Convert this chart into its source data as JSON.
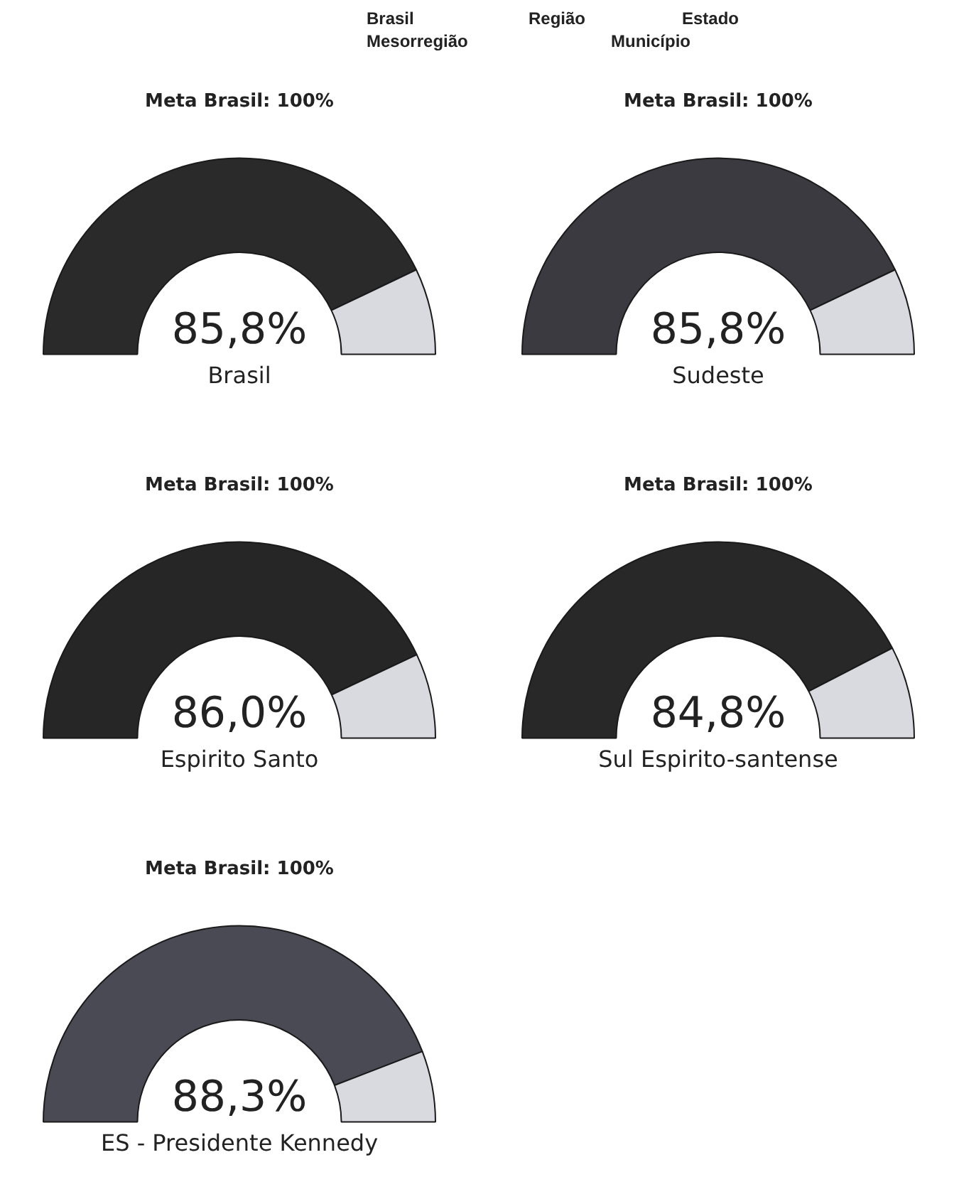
{
  "chart_data": [
    {
      "type": "other",
      "annotations": [
        "Brasil",
        "Região",
        "Estado",
        "Mesorregião",
        "Município"
      ]
    },
    {
      "type": "donut",
      "title": "Meta Brasil: 100%",
      "xlabel": "Brasil",
      "categories": [
        null,
        null
      ],
      "values": [
        85.8,
        14.2
      ],
      "colors": [
        "#2a2a2a",
        "#d9d9e0"
      ],
      "value_labels": [
        "85,8%",
        null
      ]
    },
    {
      "type": "donut",
      "title": "Meta Brasil: 100%",
      "xlabel": "Sudeste",
      "categories": [
        null,
        null
      ],
      "values": [
        85.8,
        14.2
      ],
      "colors": [
        "#3a3a40",
        "#d9d9e0"
      ],
      "value_labels": [
        "85,8%",
        null
      ]
    },
    {
      "type": "donut",
      "title": "Meta Brasil: 100%",
      "xlabel": "Espirito Santo",
      "categories": [
        null,
        null
      ],
      "values": [
        86.0,
        14.0
      ],
      "colors": [
        "#262626",
        "#d9d9e0"
      ],
      "value_labels": [
        "86,0%",
        null
      ]
    },
    {
      "type": "donut",
      "title": "Meta Brasil: 100%",
      "xlabel": "Sul Espirito-santense",
      "categories": [
        null,
        null
      ],
      "values": [
        84.8,
        15.2
      ],
      "colors": [
        "#282828",
        "#d9d9e0"
      ],
      "value_labels": [
        "84,8%",
        null
      ]
    },
    {
      "type": "donut",
      "title": "Meta Brasil: 100%",
      "xlabel": "ES - Presidente Kennedy",
      "categories": [
        null,
        null
      ],
      "values": [
        88.3,
        11.7
      ],
      "colors": [
        "#4a4a55",
        "#d9d9e0"
      ],
      "value_labels": [
        "88,3%",
        null
      ]
    }
  ]
}
